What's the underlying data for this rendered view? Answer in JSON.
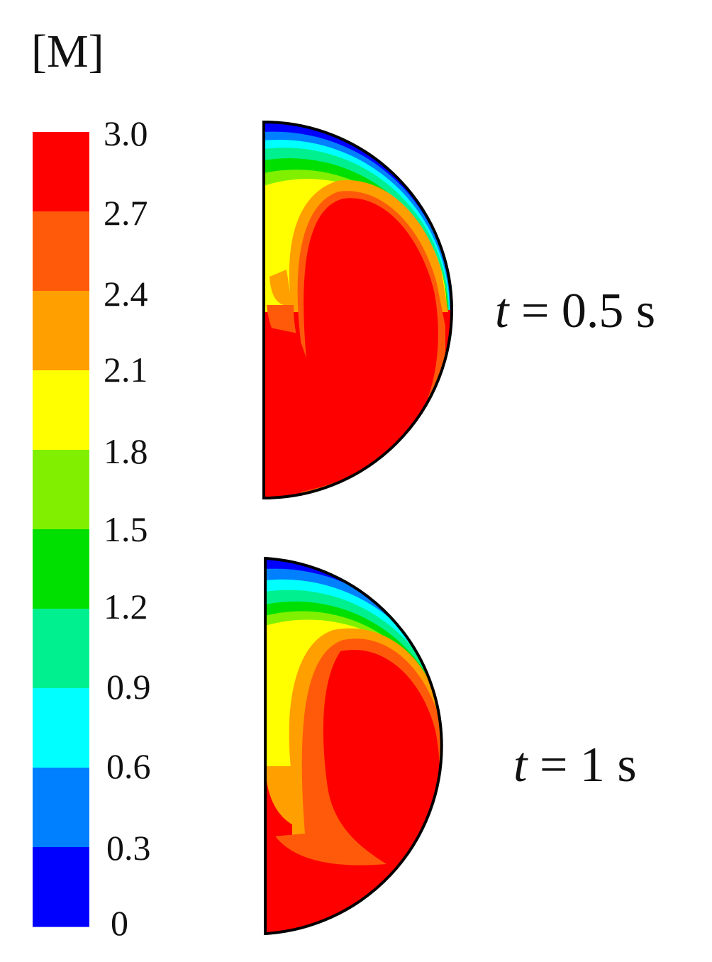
{
  "colorbar": {
    "unit": "[M]",
    "ticks": [
      "3.0",
      "2.7",
      "2.4",
      "2.1",
      "1.8",
      "1.5",
      "1.2",
      "0.9",
      "0.6",
      "0.3",
      "0"
    ],
    "band_colors": [
      "#ff0000",
      "#ff5a0a",
      "#ff9f00",
      "#ffff00",
      "#80f000",
      "#00e000",
      "#00f090",
      "#00ffff",
      "#0080ff",
      "#0000ff"
    ]
  },
  "panels": [
    {
      "time_var": "t",
      "time_rest": " = 0.5 s"
    },
    {
      "time_var": "t",
      "time_rest": " = 1 s"
    }
  ]
}
